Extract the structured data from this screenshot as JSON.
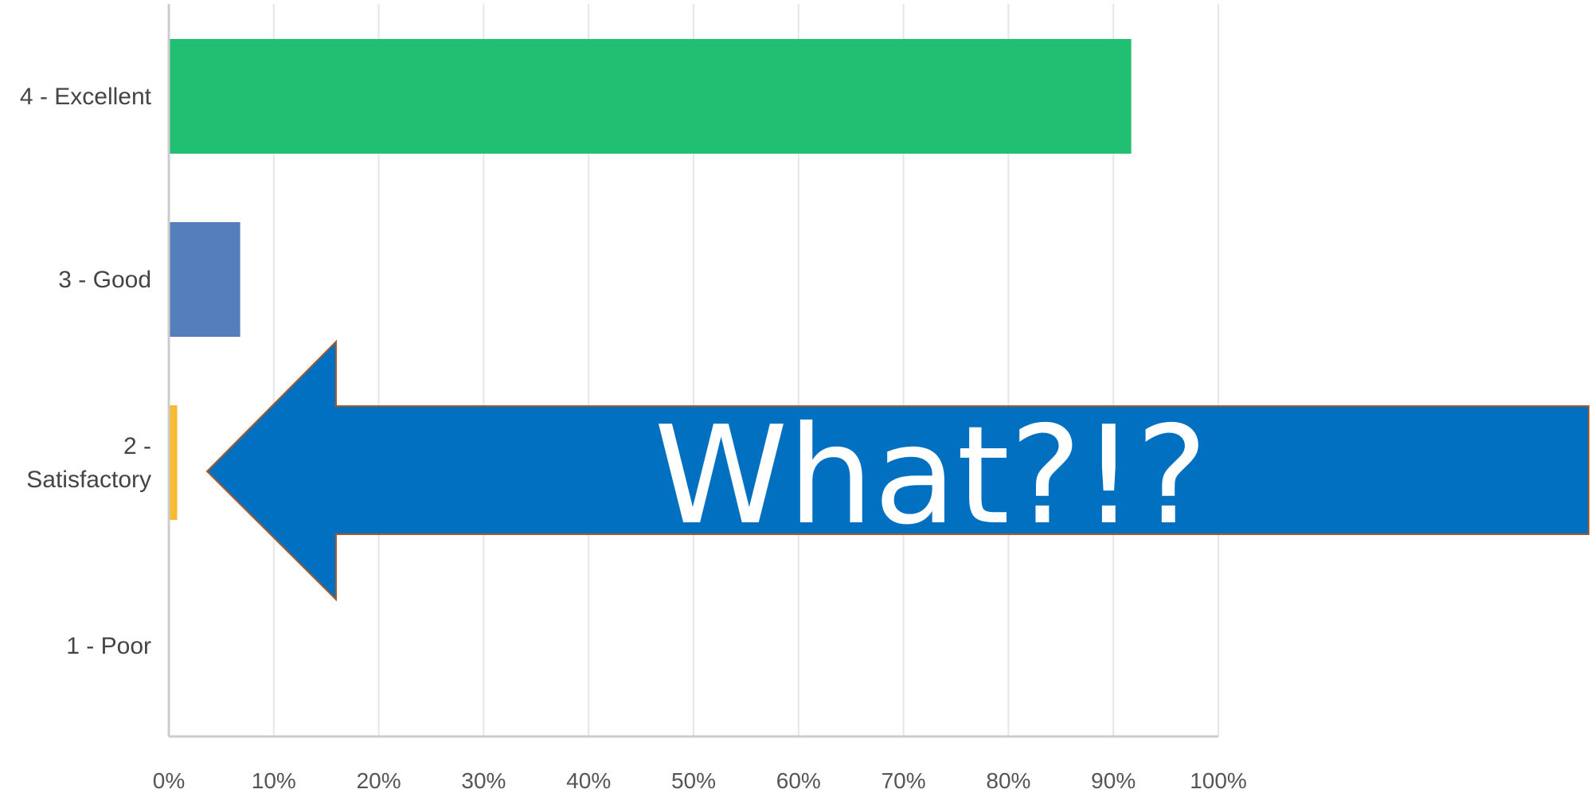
{
  "chart_data": {
    "type": "bar",
    "orientation": "horizontal",
    "categories": [
      "4 - Excellent",
      "3 - Good",
      "2 - Satisfactory",
      "1 - Poor"
    ],
    "category_lines": [
      [
        "4 - Excellent"
      ],
      [
        "3 - Good"
      ],
      [
        "2 -",
        "Satisfactory"
      ],
      [
        "1 - Poor"
      ]
    ],
    "values": [
      91.7,
      6.8,
      0.8,
      0
    ],
    "colors": [
      "#20bf72",
      "#557fba",
      "#f6bb33",
      "#999999"
    ],
    "xlim": [
      0,
      100
    ],
    "x_ticks": [
      "0%",
      "10%",
      "20%",
      "30%",
      "40%",
      "50%",
      "60%",
      "70%",
      "80%",
      "90%",
      "100%"
    ],
    "grid": true,
    "legend": "none",
    "title": "",
    "xlabel": "",
    "ylabel": ""
  },
  "callout": {
    "text": "What?!?",
    "fill_color": "#0270c0",
    "border_color": "#a65a2a"
  }
}
